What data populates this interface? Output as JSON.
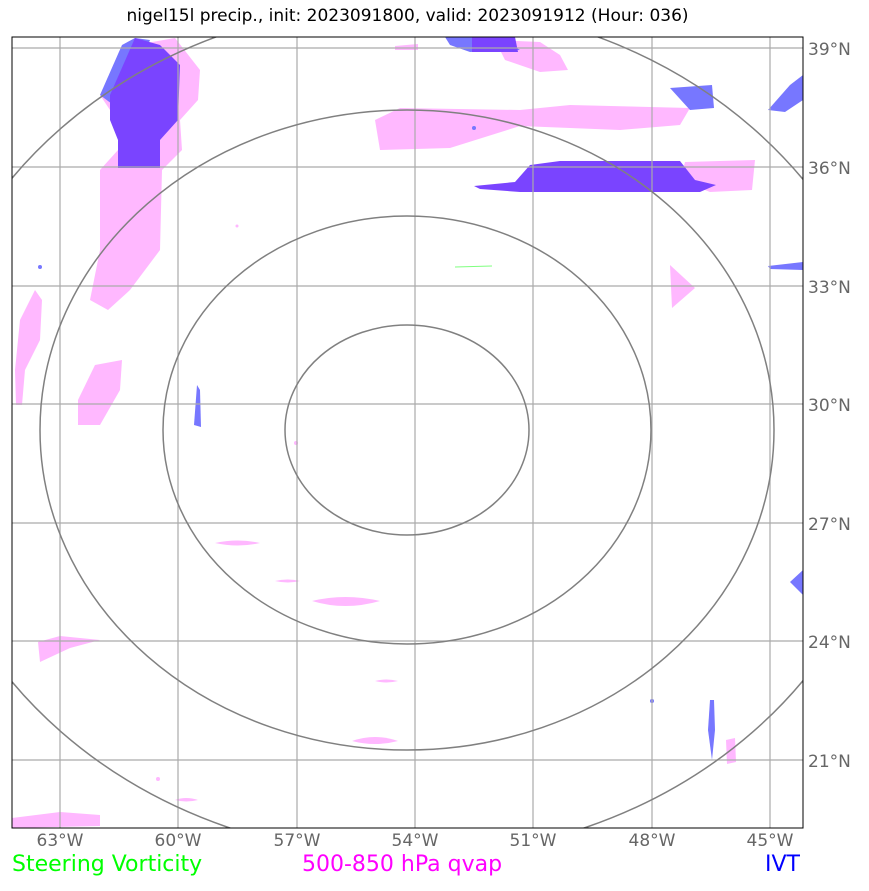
{
  "title": "nigel15l precip., init: 2023091800, valid: 2023091912 (Hour: 036)",
  "map": {
    "lat_labels": [
      "39°N",
      "36°N",
      "33°N",
      "30°N",
      "27°N",
      "24°N",
      "21°N"
    ],
    "lon_labels": [
      "63°W",
      "60°W",
      "57°W",
      "54°W",
      "51°W",
      "48°W",
      "45°W"
    ],
    "range_ring_count": 4
  },
  "legend": {
    "steering_vorticity": "Steering Vorticity",
    "qvap": "500-850 hPa qvap",
    "ivt": "IVT"
  },
  "colors": {
    "steering_vorticity": "#00ff00",
    "qvap": "#ff00ff",
    "qvap_fill": "#ffb8ff",
    "ivt": "#0000ff",
    "ivt_light": "#7777ff",
    "ivt_dark": "#7a44ff",
    "grid": "#aaaaaa",
    "rings": "#808080"
  }
}
